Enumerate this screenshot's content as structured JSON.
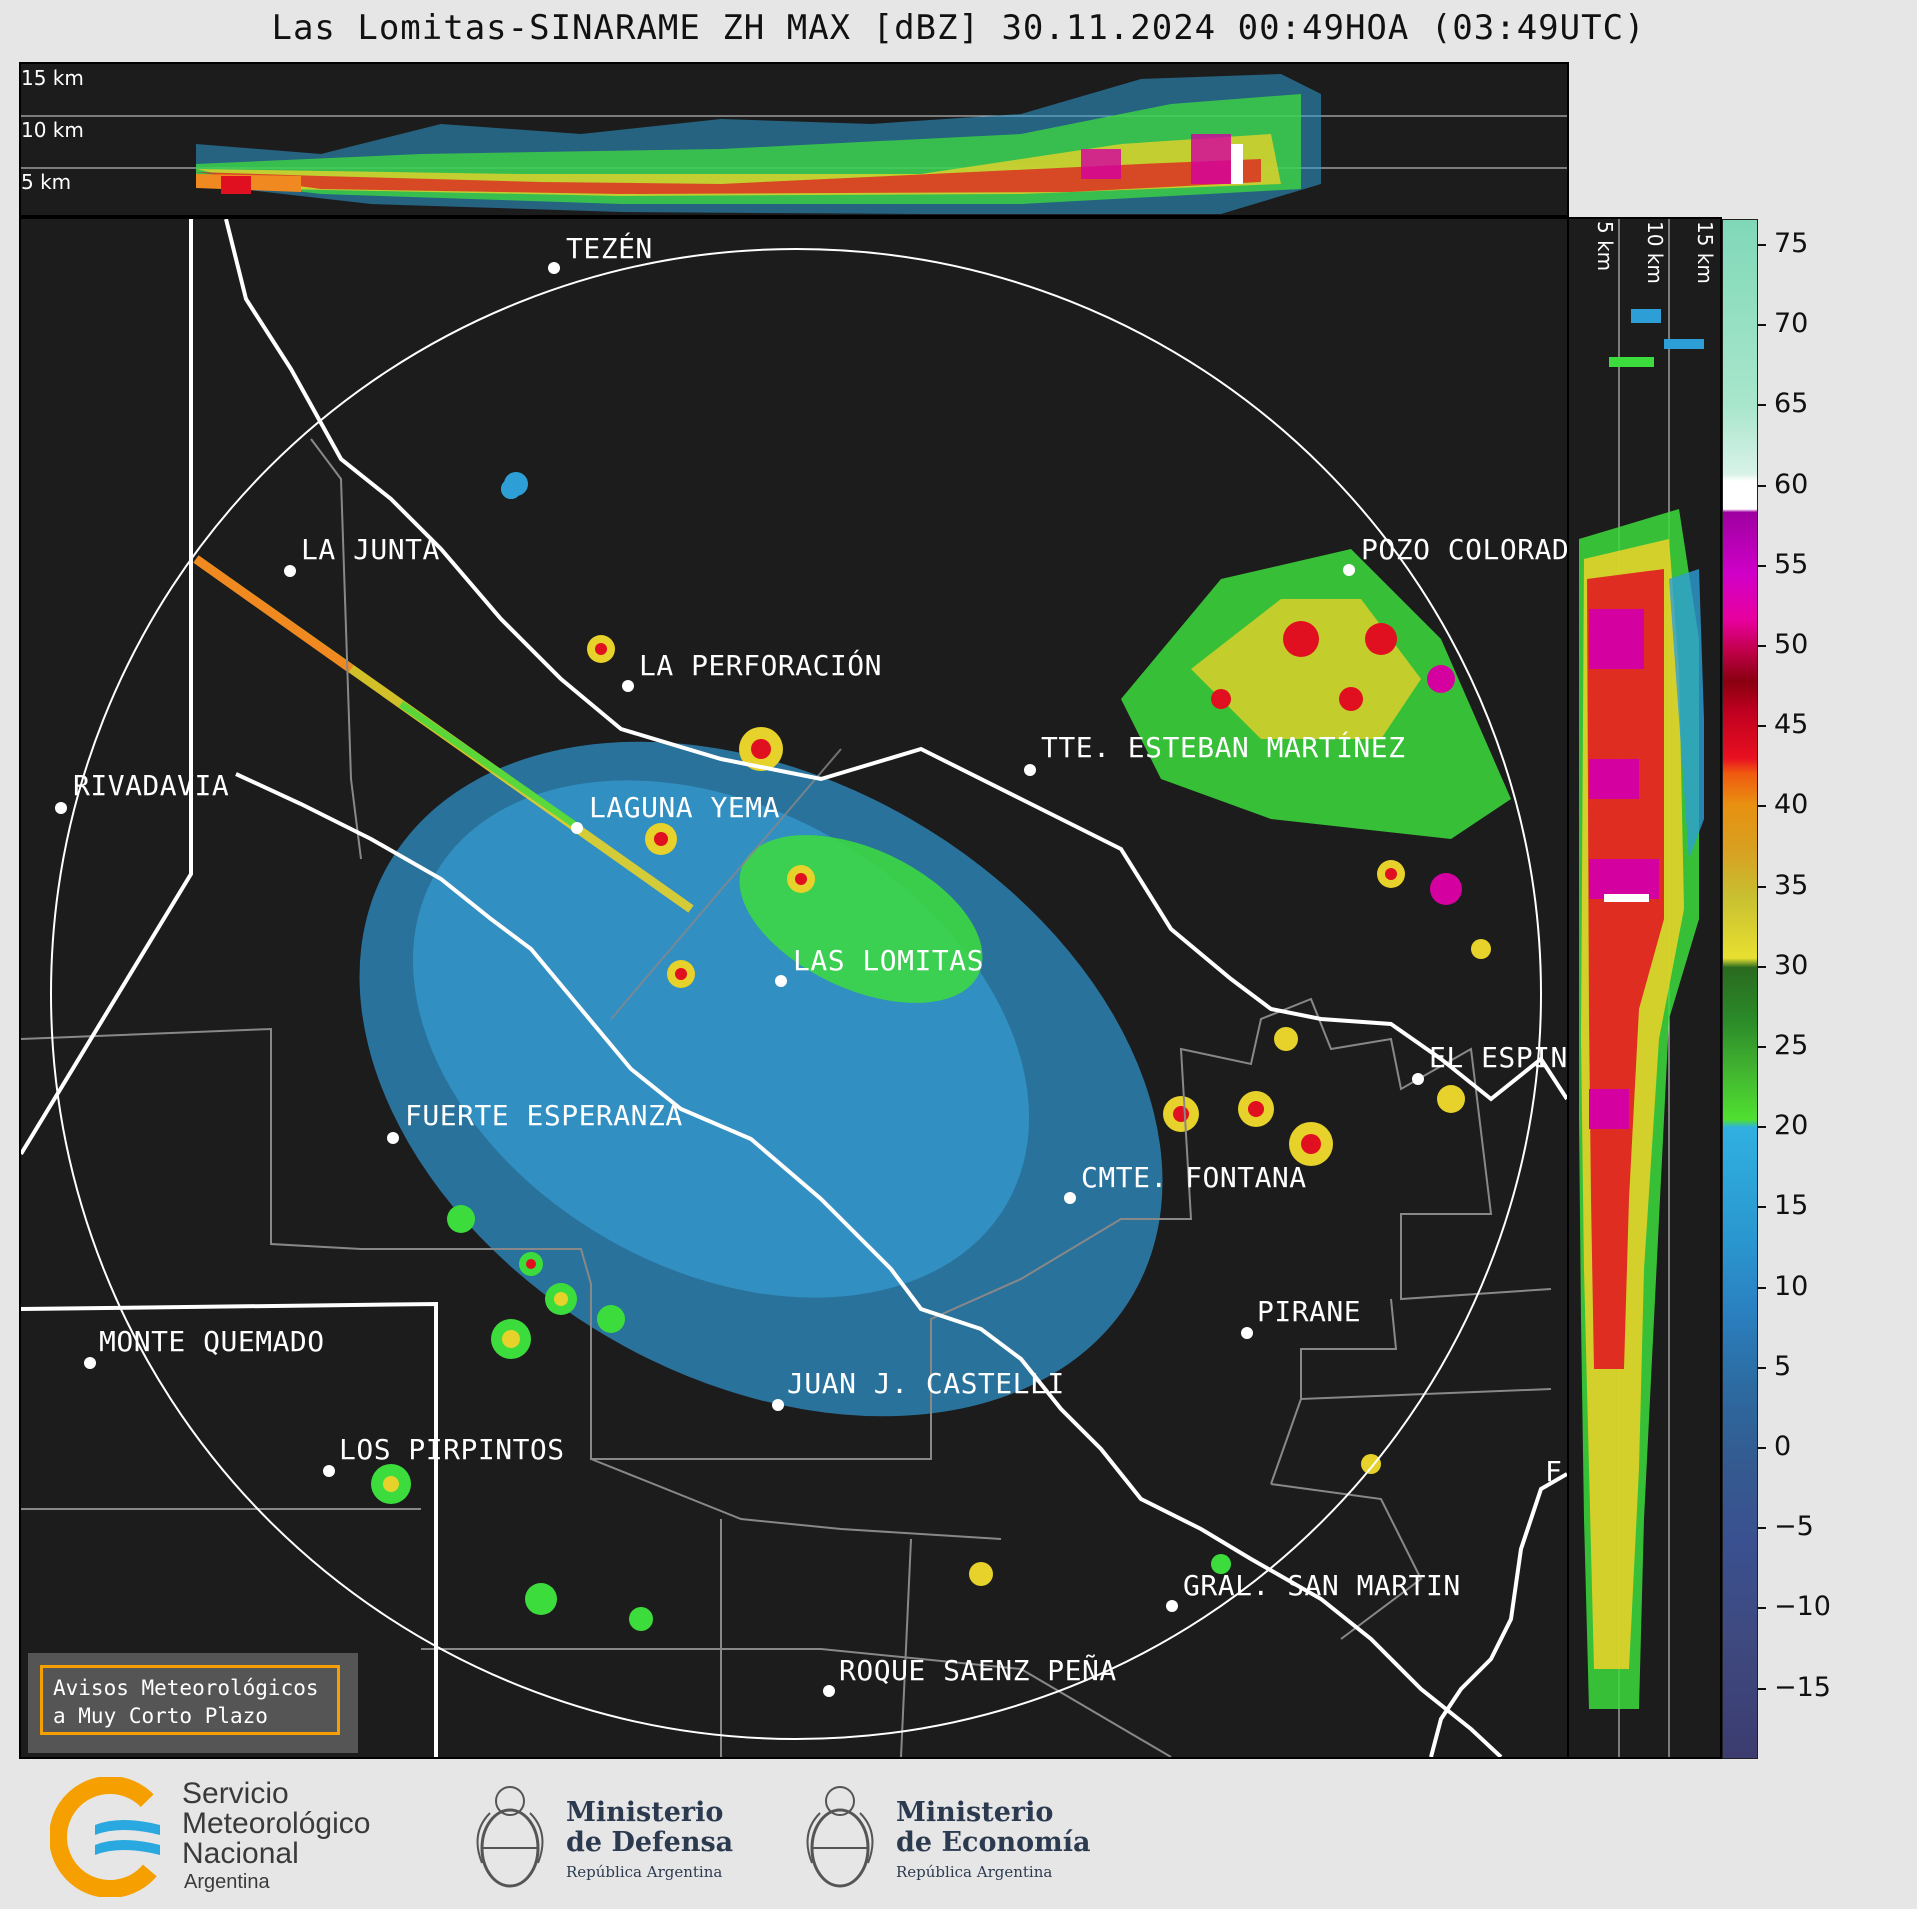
{
  "title": "Las Lomitas-SINARAME ZH MAX [dBZ] 30.11.2024 00:49HOA (03:49UTC)",
  "top_altitudes": [
    "15 km",
    "10 km",
    "5 km"
  ],
  "side_altitudes": [
    "5 km",
    "10 km",
    "15 km"
  ],
  "colorbar": {
    "ticks": [
      "75",
      "70",
      "65",
      "60",
      "55",
      "50",
      "45",
      "40",
      "35",
      "30",
      "25",
      "20",
      "15",
      "10",
      "5",
      "0",
      "−5",
      "−10",
      "−15"
    ]
  },
  "cities": [
    {
      "name": "TEZÉN"
    },
    {
      "name": "LA JUNTA"
    },
    {
      "name": "POZO COLORAD"
    },
    {
      "name": "LA PERFORACIÓN"
    },
    {
      "name": "TTE. ESTEBAN MARTÍNEZ"
    },
    {
      "name": "RIVADAVIA"
    },
    {
      "name": "LAGUNA YEMA"
    },
    {
      "name": "LAS LOMITAS"
    },
    {
      "name": "EL ESPIN"
    },
    {
      "name": "FUERTE ESPERANZA"
    },
    {
      "name": "CMTE. FONTANA"
    },
    {
      "name": "PIRANE"
    },
    {
      "name": "MONTE QUEMADO"
    },
    {
      "name": "JUAN J. CASTELLI"
    },
    {
      "name": "LOS PIRPINTOS"
    },
    {
      "name": "F"
    },
    {
      "name": "GRAL. SAN MARTIN"
    },
    {
      "name": "ROQUE SAENZ PEÑA"
    }
  ],
  "avisos": {
    "line1": "Avisos Meteorológicos",
    "line2": "a Muy Corto Plazo"
  },
  "logos": {
    "smn": {
      "line1": "Servicio",
      "line2": "Meteorológico",
      "line3": "Nacional",
      "line4": "Argentina"
    },
    "defensa": {
      "line1": "Ministerio",
      "line2": "de Defensa",
      "line3": "República Argentina"
    },
    "economia": {
      "line1": "Ministerio",
      "line2": "de Economía",
      "line3": "República Argentina"
    }
  },
  "colors": {
    "background": "#1c1c1c",
    "range_ring": "#ffffff",
    "avisos_border": "#f5a000",
    "smn_orange": "#f5a000",
    "smn_blue": "#29a9e0"
  }
}
